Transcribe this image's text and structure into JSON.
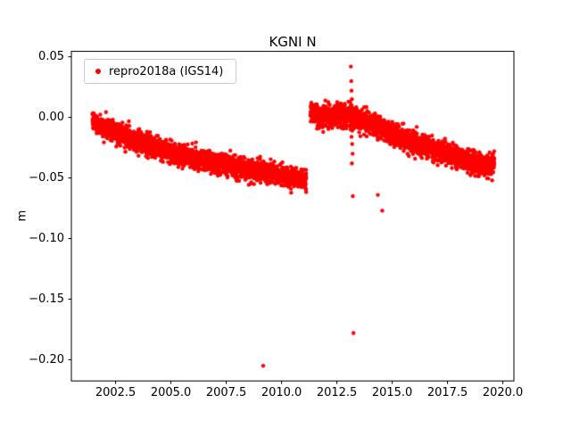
{
  "chart_data": {
    "type": "scatter",
    "title": "KGNI N",
    "xlabel": "",
    "ylabel": "m",
    "xlim": [
      2000.5,
      2020.5
    ],
    "ylim": [
      -0.2175,
      0.0545
    ],
    "xticks": [
      {
        "value": 2002.5,
        "label": "2002.5"
      },
      {
        "value": 2005.0,
        "label": "2005.0"
      },
      {
        "value": 2007.5,
        "label": "2007.5"
      },
      {
        "value": 2010.0,
        "label": "2010.0"
      },
      {
        "value": 2012.5,
        "label": "2012.5"
      },
      {
        "value": 2015.0,
        "label": "2015.0"
      },
      {
        "value": 2017.5,
        "label": "2017.5"
      },
      {
        "value": 2020.0,
        "label": "2020.0"
      }
    ],
    "yticks": [
      {
        "value": 0.05,
        "label": "0.05"
      },
      {
        "value": 0.0,
        "label": "0.00"
      },
      {
        "value": -0.05,
        "label": "−0.05"
      },
      {
        "value": -0.1,
        "label": "−0.10"
      },
      {
        "value": -0.15,
        "label": "−0.15"
      },
      {
        "value": -0.2,
        "label": "−0.20"
      }
    ],
    "legend": {
      "position": "upper-left",
      "entries": [
        {
          "label": "repro2018a (IGS14)",
          "color": "#ff0000",
          "marker": "dot"
        }
      ]
    },
    "series": [
      {
        "name": "repro2018a (IGS14)",
        "color": "#ff0000",
        "segments": [
          {
            "x_start": 2001.45,
            "x_end": 2011.12,
            "trend": [
              [
                2001.45,
                -0.004
              ],
              [
                2002.5,
                -0.012
              ],
              [
                2003.5,
                -0.02
              ],
              [
                2005.0,
                -0.029
              ],
              [
                2006.5,
                -0.036
              ],
              [
                2008.0,
                -0.041
              ],
              [
                2009.5,
                -0.046
              ],
              [
                2010.5,
                -0.05
              ],
              [
                2011.12,
                -0.052
              ]
            ],
            "noise_sigma": 0.0042,
            "points_per_year": 260
          },
          {
            "x_start": 2011.3,
            "x_end": 2019.62,
            "trend": [
              [
                2011.3,
                0.004
              ],
              [
                2011.8,
                0.001
              ],
              [
                2012.5,
                0.002
              ],
              [
                2013.0,
                0.001
              ],
              [
                2013.5,
                -0.002
              ],
              [
                2014.0,
                -0.005
              ],
              [
                2015.0,
                -0.014
              ],
              [
                2016.0,
                -0.021
              ],
              [
                2017.0,
                -0.028
              ],
              [
                2018.0,
                -0.033
              ],
              [
                2018.9,
                -0.039
              ],
              [
                2019.3,
                -0.041
              ],
              [
                2019.62,
                -0.038
              ]
            ],
            "noise_sigma": 0.0045,
            "points_per_year": 260
          }
        ],
        "outliers": [
          [
            2009.17,
            -0.205
          ],
          [
            2013.13,
            0.042
          ],
          [
            2013.15,
            0.03
          ],
          [
            2013.16,
            0.022
          ],
          [
            2013.18,
            0.015
          ],
          [
            2013.14,
            0.01
          ],
          [
            2013.12,
            -0.01
          ],
          [
            2013.16,
            -0.016
          ],
          [
            2013.19,
            -0.022
          ],
          [
            2013.21,
            -0.03
          ],
          [
            2013.18,
            -0.038
          ],
          [
            2013.22,
            -0.065
          ],
          [
            2013.25,
            -0.178
          ],
          [
            2014.35,
            -0.064
          ],
          [
            2014.55,
            -0.077
          ]
        ]
      }
    ]
  }
}
